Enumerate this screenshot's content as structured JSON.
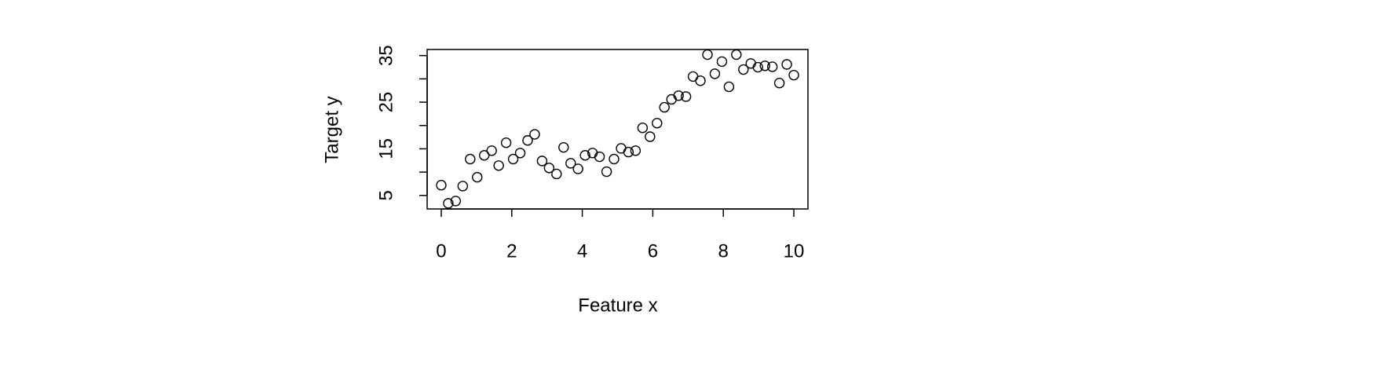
{
  "chart_data": {
    "type": "scatter",
    "x_label": "Feature x",
    "y_label": "Target y",
    "x": [
      0,
      0.2,
      0.41,
      0.61,
      0.82,
      1.02,
      1.22,
      1.43,
      1.63,
      1.84,
      2.04,
      2.24,
      2.45,
      2.65,
      2.86,
      3.06,
      3.27,
      3.47,
      3.67,
      3.88,
      4.08,
      4.29,
      4.49,
      4.69,
      4.9,
      5.1,
      5.31,
      5.51,
      5.71,
      5.92,
      6.12,
      6.33,
      6.53,
      6.73,
      6.94,
      7.14,
      7.35,
      7.55,
      7.76,
      7.96,
      8.16,
      8.37,
      8.57,
      8.78,
      8.98,
      9.18,
      9.39,
      9.59,
      9.8,
      10
    ],
    "values": [
      7.2,
      3.3,
      3.8,
      7.0,
      12.8,
      8.9,
      13.6,
      14.6,
      11.4,
      16.3,
      12.8,
      14.1,
      16.8,
      18.1,
      12.4,
      10.9,
      9.6,
      15.3,
      11.9,
      10.7,
      13.6,
      14.1,
      13.3,
      10.1,
      12.8,
      15.1,
      14.3,
      14.6,
      19.5,
      17.6,
      20.5,
      23.9,
      25.6,
      26.4,
      26.2,
      30.5,
      29.6,
      35.2,
      31.1,
      33.7,
      28.3,
      35.2,
      32.0,
      33.3,
      32.5,
      32.8,
      32.6,
      29.1,
      33.1,
      30.8
    ],
    "color": "#000000",
    "xlim": [
      -0.4,
      10.4
    ],
    "ylim": [
      2.1,
      36.3
    ],
    "xticks": [
      0,
      2,
      4,
      6,
      8,
      10
    ],
    "yticks": [
      5,
      {
        "value": 10,
        "label": null
      },
      15,
      {
        "value": 20,
        "label": null
      },
      25,
      {
        "value": 30,
        "label": null
      },
      35
    ]
  }
}
